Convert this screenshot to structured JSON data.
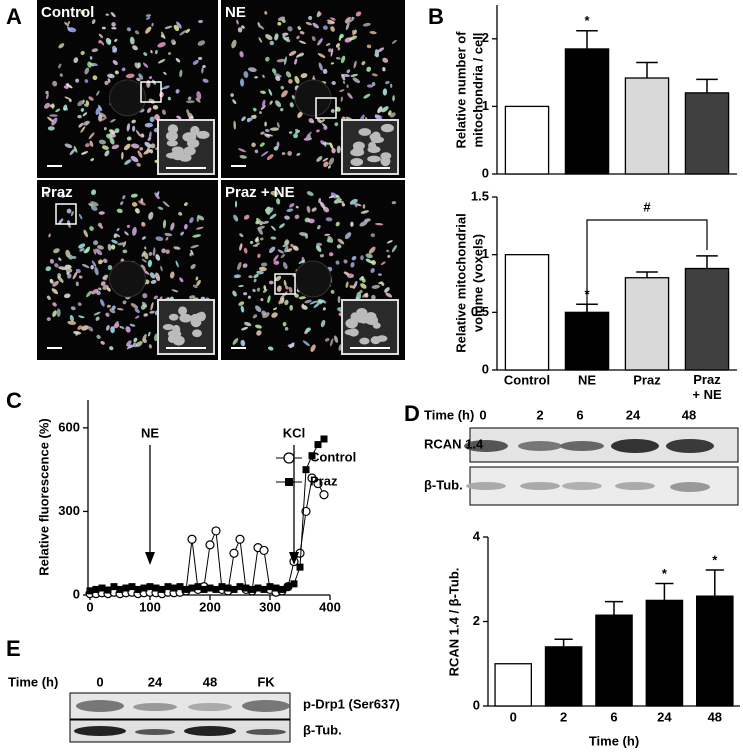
{
  "panel_labels": [
    "A",
    "B",
    "C",
    "D",
    "E"
  ],
  "panel_a": {
    "images": [
      "Control",
      "NE",
      "Praz",
      "Praz + NE"
    ]
  },
  "panel_d_blot": {
    "time_label": "Time (h)",
    "times": [
      "0",
      "2",
      "6",
      "24",
      "48"
    ],
    "rows": [
      "RCAN 1.4",
      "β-Tub."
    ]
  },
  "panel_e_blot": {
    "time_label": "Time (h)",
    "lanes": [
      "0",
      "24",
      "48",
      "FK"
    ],
    "rows": [
      "p-Drp1 (Ser637)",
      "β-Tub."
    ]
  },
  "chart_data": [
    {
      "type": "bar",
      "ylabel": [
        "Relative number of",
        "mitochondria / cell"
      ],
      "values": [
        1,
        1.85,
        1.42,
        1.2
      ],
      "errors": [
        null,
        0.27,
        0.23,
        0.2
      ],
      "colors": [
        "#ffffff",
        "#000000",
        "#d9d9d9",
        "#404040"
      ],
      "ylim": [
        0,
        2.5
      ],
      "yticks": [
        0,
        1,
        2
      ],
      "annotations": [
        {
          "text": "*",
          "index": 1
        }
      ]
    },
    {
      "type": "bar",
      "ylabel": [
        "Relative mitochondrial",
        "volume (voxels)"
      ],
      "categories": [
        "Control",
        "NE",
        "Praz",
        "Praz + NE"
      ],
      "values": [
        1,
        0.5,
        0.8,
        0.88
      ],
      "errors": [
        null,
        0.07,
        0.05,
        0.11
      ],
      "colors": [
        "#ffffff",
        "#000000",
        "#d9d9d9",
        "#404040"
      ],
      "ylim": [
        0,
        1.5
      ],
      "yticks": [
        0,
        0.5,
        1,
        1.5
      ],
      "annotations": [
        {
          "text": "*",
          "index": 1
        }
      ],
      "bracket_label": "#"
    },
    {
      "type": "line",
      "ylabel": [
        "Relative fluorescence (%)"
      ],
      "x": [
        0,
        10,
        20,
        30,
        40,
        50,
        60,
        70,
        80,
        90,
        100,
        110,
        120,
        130,
        140,
        150,
        160,
        170,
        180,
        190,
        200,
        210,
        220,
        230,
        240,
        250,
        260,
        270,
        280,
        290,
        300,
        310,
        320,
        330,
        340,
        350,
        360,
        370,
        380,
        390
      ],
      "series": [
        {
          "name": "Control",
          "color": "#000000",
          "marker": "circle-open",
          "values": [
            5,
            5,
            8,
            5,
            10,
            5,
            8,
            10,
            5,
            8,
            10,
            8,
            5,
            10,
            8,
            10,
            15,
            200,
            20,
            30,
            180,
            230,
            20,
            15,
            150,
            200,
            20,
            15,
            170,
            160,
            20,
            10,
            15,
            30,
            120,
            150,
            300,
            420,
            400,
            360
          ]
        },
        {
          "name": "Praz",
          "color": "#000000",
          "marker": "square",
          "values": [
            15,
            20,
            25,
            18,
            30,
            20,
            25,
            30,
            20,
            25,
            30,
            25,
            20,
            30,
            25,
            30,
            20,
            25,
            30,
            20,
            25,
            20,
            30,
            25,
            20,
            30,
            25,
            20,
            25,
            20,
            30,
            25,
            20,
            30,
            40,
            100,
            450,
            500,
            540,
            560
          ]
        }
      ],
      "xlim": [
        0,
        400
      ],
      "xticks": [
        0,
        100,
        200,
        300,
        400
      ],
      "ylim": [
        0,
        700
      ],
      "yticks": [
        0,
        300,
        600
      ],
      "arrows": [
        {
          "label": "NE",
          "x": 100
        },
        {
          "label": "KCl",
          "x": 340
        }
      ]
    },
    {
      "type": "bar",
      "ylabel": [
        "RCAN 1.4 / β-Tub."
      ],
      "xlabel": "Time (h)",
      "categories": [
        "0",
        "2",
        "6",
        "24",
        "48"
      ],
      "values": [
        1,
        1.4,
        2.15,
        2.5,
        2.6
      ],
      "errors": [
        null,
        0.18,
        0.32,
        0.4,
        0.62
      ],
      "colors": [
        "#ffffff",
        "#000000",
        "#000000",
        "#000000",
        "#000000"
      ],
      "ylim": [
        0,
        4
      ],
      "yticks": [
        0,
        2,
        4
      ],
      "annotations": [
        {
          "text": "*",
          "index": 3
        },
        {
          "text": "*",
          "index": 4
        }
      ]
    }
  ]
}
